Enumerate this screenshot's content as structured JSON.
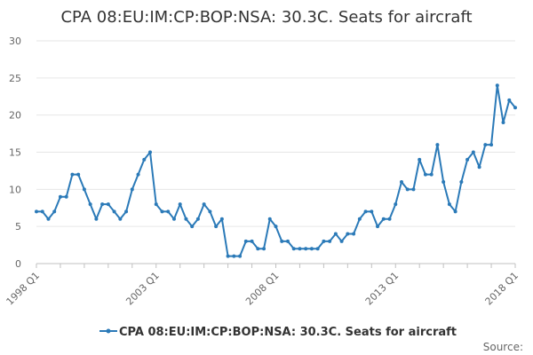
{
  "chart_data": {
    "type": "line",
    "title": "CPA 08:EU:IM:CP:BOP:NSA: 30.3C. Seats for aircraft",
    "xlabel": "",
    "ylabel": "",
    "ylim": [
      0,
      30
    ],
    "yticks": [
      0,
      5,
      10,
      15,
      20,
      25,
      30
    ],
    "xlim": [
      "1998 Q1",
      "2018 Q1"
    ],
    "xtick_labels": [
      "1998 Q1",
      "2003 Q1",
      "2008 Q1",
      "2013 Q1",
      "2018 Q1"
    ],
    "grid": true,
    "legend_position": "bottom",
    "color": "#2b7ab8",
    "series": [
      {
        "name": "CPA 08:EU:IM:CP:BOP:NSA: 30.3C. Seats for aircraft",
        "x": [
          "1998 Q1",
          "1998 Q2",
          "1998 Q3",
          "1998 Q4",
          "1999 Q1",
          "1999 Q2",
          "1999 Q3",
          "1999 Q4",
          "2000 Q1",
          "2000 Q2",
          "2000 Q3",
          "2000 Q4",
          "2001 Q1",
          "2001 Q2",
          "2001 Q3",
          "2001 Q4",
          "2002 Q1",
          "2002 Q2",
          "2002 Q3",
          "2002 Q4",
          "2003 Q1",
          "2003 Q2",
          "2003 Q3",
          "2003 Q4",
          "2004 Q1",
          "2004 Q2",
          "2004 Q3",
          "2004 Q4",
          "2005 Q1",
          "2005 Q2",
          "2005 Q3",
          "2005 Q4",
          "2006 Q1",
          "2006 Q2",
          "2006 Q3",
          "2006 Q4",
          "2007 Q1",
          "2007 Q2",
          "2007 Q3",
          "2007 Q4",
          "2008 Q1",
          "2008 Q2",
          "2008 Q3",
          "2008 Q4",
          "2009 Q1",
          "2009 Q2",
          "2009 Q3",
          "2009 Q4",
          "2010 Q1",
          "2010 Q2",
          "2010 Q3",
          "2010 Q4",
          "2011 Q1",
          "2011 Q2",
          "2011 Q3",
          "2011 Q4",
          "2012 Q1",
          "2012 Q2",
          "2012 Q3",
          "2012 Q4",
          "2013 Q1",
          "2013 Q2",
          "2013 Q3",
          "2013 Q4",
          "2014 Q1",
          "2014 Q2",
          "2014 Q3",
          "2014 Q4",
          "2015 Q1",
          "2015 Q2",
          "2015 Q3",
          "2015 Q4",
          "2016 Q1",
          "2016 Q2",
          "2016 Q3",
          "2016 Q4",
          "2017 Q1",
          "2017 Q2",
          "2017 Q3",
          "2017 Q4",
          "2018 Q1"
        ],
        "values": [
          7,
          7,
          6,
          7,
          9,
          9,
          12,
          12,
          10,
          8,
          6,
          8,
          8,
          7,
          6,
          7,
          10,
          12,
          14,
          15,
          8,
          7,
          7,
          6,
          8,
          6,
          5,
          6,
          8,
          7,
          5,
          6,
          1,
          1,
          1,
          3,
          3,
          2,
          2,
          6,
          5,
          3,
          3,
          2,
          2,
          2,
          2,
          2,
          3,
          3,
          4,
          3,
          4,
          4,
          6,
          7,
          7,
          5,
          6,
          6,
          8,
          11,
          10,
          10,
          14,
          12,
          12,
          16,
          11,
          8,
          7,
          11,
          14,
          15,
          13,
          16,
          16,
          24,
          19,
          22,
          21
        ]
      }
    ]
  },
  "source_label": "Source:"
}
